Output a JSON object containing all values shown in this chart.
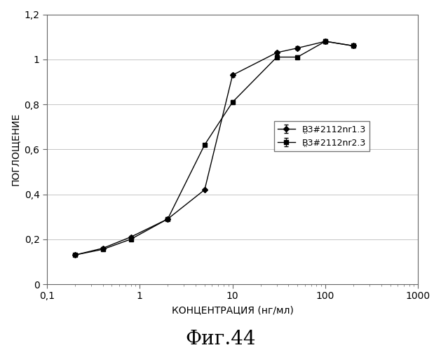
{
  "series1_label": "В̤3#2112nr1.3",
  "series2_label": "В̤3#2112nr2.3",
  "series1_x": [
    0.2,
    0.4,
    0.8,
    2,
    5,
    10,
    30,
    50,
    100,
    200
  ],
  "series1_y": [
    0.13,
    0.16,
    0.21,
    0.29,
    0.42,
    0.93,
    1.03,
    1.05,
    1.08,
    1.06
  ],
  "series2_x": [
    0.2,
    0.4,
    0.8,
    2,
    5,
    10,
    30,
    50,
    100,
    200
  ],
  "series2_y": [
    0.13,
    0.155,
    0.2,
    0.29,
    0.62,
    0.81,
    1.01,
    1.01,
    1.08,
    1.06
  ],
  "series1_yerr": [
    0.004,
    0.004,
    0.004,
    0.004,
    0.004,
    0.008,
    0.008,
    0.008,
    0.008,
    0.008
  ],
  "series2_yerr": [
    0.004,
    0.004,
    0.004,
    0.004,
    0.004,
    0.008,
    0.008,
    0.008,
    0.008,
    0.008
  ],
  "xlabel": "КОНЦЕНТРАЦИЯ (нг/мл)",
  "ylabel": "ПОГЛОЩЕНИЕ",
  "xlim": [
    0.1,
    1000
  ],
  "ylim": [
    0,
    1.2
  ],
  "yticks": [
    0,
    0.2,
    0.4,
    0.6,
    0.8,
    1.0,
    1.2
  ],
  "ytick_labels": [
    "0",
    "0,2",
    "0,4",
    "0,6",
    "0,8",
    "1",
    "1,2"
  ],
  "xtick_labels": [
    "0,1",
    "1",
    "10",
    "100",
    "1000"
  ],
  "xtick_positions": [
    0.1,
    1,
    10,
    100,
    1000
  ],
  "fig_caption": "Фиг.44",
  "background_color": "#ffffff",
  "plot_bg_color": "#ffffff",
  "line_color": "#000000",
  "marker1": "D",
  "marker2": "s",
  "caption_fontsize": 20,
  "axis_label_fontsize": 10,
  "tick_fontsize": 10,
  "legend_fontsize": 9
}
